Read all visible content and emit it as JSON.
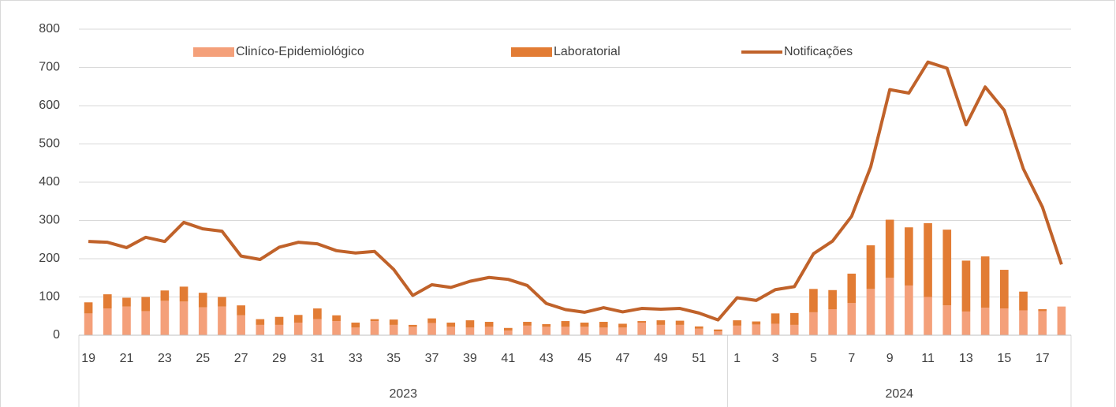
{
  "chart_data": {
    "type": "bar",
    "categories": [
      "19",
      null,
      "21",
      null,
      "23",
      null,
      "25",
      null,
      "27",
      null,
      "29",
      null,
      "31",
      null,
      "33",
      null,
      "35",
      null,
      "37",
      null,
      "39",
      null,
      "41",
      null,
      "43",
      null,
      "45",
      null,
      "47",
      null,
      "49",
      null,
      "51",
      null,
      "1",
      null,
      "3",
      null,
      "5",
      null,
      "7",
      null,
      "9",
      null,
      "11",
      null,
      "13",
      null,
      "15",
      null,
      "17",
      null
    ],
    "groups": [
      {
        "label": "2023",
        "span": 34
      },
      {
        "label": "2024",
        "span": 18
      }
    ],
    "series": [
      {
        "name": "Cliníco-Epidemiológico",
        "type": "bar",
        "color": "#f4a07a",
        "values": [
          57,
          70,
          75,
          63,
          90,
          88,
          73,
          75,
          52,
          27,
          27,
          33,
          42,
          37,
          20,
          37,
          27,
          22,
          32,
          22,
          20,
          22,
          12,
          25,
          22,
          22,
          22,
          20,
          20,
          33,
          27,
          27,
          17,
          10,
          25,
          28,
          30,
          27,
          60,
          68,
          84,
          121,
          150,
          130,
          100,
          78,
          62,
          72,
          70,
          65,
          63,
          75
        ]
      },
      {
        "name": "Laboratorial",
        "type": "bar",
        "color": "#e27c34",
        "values": [
          29,
          37,
          23,
          37,
          27,
          39,
          38,
          25,
          26,
          15,
          21,
          20,
          28,
          15,
          13,
          5,
          14,
          5,
          12,
          11,
          19,
          13,
          7,
          10,
          7,
          15,
          11,
          15,
          10,
          4,
          12,
          11,
          6,
          5,
          14,
          8,
          27,
          31,
          61,
          50,
          77,
          114,
          152,
          152,
          193,
          198,
          133,
          134,
          101,
          49,
          5,
          0
        ]
      },
      {
        "name": "Notificações",
        "type": "line",
        "color": "#c0622a",
        "values": [
          245,
          243,
          229,
          256,
          245,
          295,
          278,
          272,
          207,
          198,
          230,
          243,
          239,
          221,
          215,
          219,
          172,
          104,
          132,
          125,
          141,
          151,
          146,
          130,
          83,
          67,
          60,
          72,
          61,
          70,
          68,
          70,
          58,
          40,
          98,
          91,
          119,
          127,
          213,
          246,
          311,
          440,
          642,
          633,
          714,
          698,
          550,
          649,
          588,
          435,
          335,
          185
        ]
      }
    ],
    "ylim": [
      0,
      800
    ],
    "yticks": [
      0,
      100,
      200,
      300,
      400,
      500,
      600,
      700,
      800
    ],
    "grid": true,
    "stacked": true,
    "legend": "top"
  }
}
